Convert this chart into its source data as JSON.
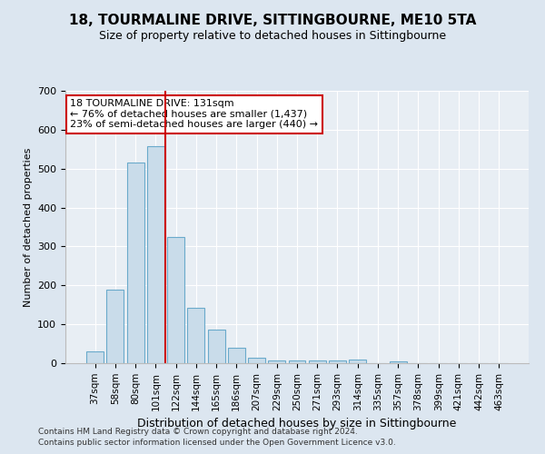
{
  "title1": "18, TOURMALINE DRIVE, SITTINGBOURNE, ME10 5TA",
  "title2": "Size of property relative to detached houses in Sittingbourne",
  "xlabel": "Distribution of detached houses by size in Sittingbourne",
  "ylabel": "Number of detached properties",
  "categories": [
    "37sqm",
    "58sqm",
    "80sqm",
    "101sqm",
    "122sqm",
    "144sqm",
    "165sqm",
    "186sqm",
    "207sqm",
    "229sqm",
    "250sqm",
    "271sqm",
    "293sqm",
    "314sqm",
    "335sqm",
    "357sqm",
    "378sqm",
    "399sqm",
    "421sqm",
    "442sqm",
    "463sqm"
  ],
  "values": [
    30,
    188,
    515,
    558,
    325,
    143,
    87,
    40,
    13,
    8,
    8,
    8,
    8,
    10,
    0,
    5,
    0,
    0,
    0,
    0,
    0
  ],
  "bar_color": "#c9dcea",
  "bar_edge_color": "#6aaacb",
  "red_line_x": 4.0,
  "annotation_text": "18 TOURMALINE DRIVE: 131sqm\n← 76% of detached houses are smaller (1,437)\n23% of semi-detached houses are larger (440) →",
  "annotation_box_color": "#ffffff",
  "annotation_box_edge_color": "#cc0000",
  "ylim": [
    0,
    700
  ],
  "yticks": [
    0,
    100,
    200,
    300,
    400,
    500,
    600,
    700
  ],
  "footer1": "Contains HM Land Registry data © Crown copyright and database right 2024.",
  "footer2": "Contains public sector information licensed under the Open Government Licence v3.0.",
  "bg_color": "#dce6f0",
  "plot_bg_color": "#e8eef4",
  "grid_color": "#ffffff",
  "title1_fontsize": 11,
  "title2_fontsize": 9,
  "xlabel_fontsize": 9,
  "ylabel_fontsize": 8,
  "tick_fontsize": 8,
  "xtick_fontsize": 7.5,
  "annotation_fontsize": 8,
  "footer_fontsize": 6.5
}
